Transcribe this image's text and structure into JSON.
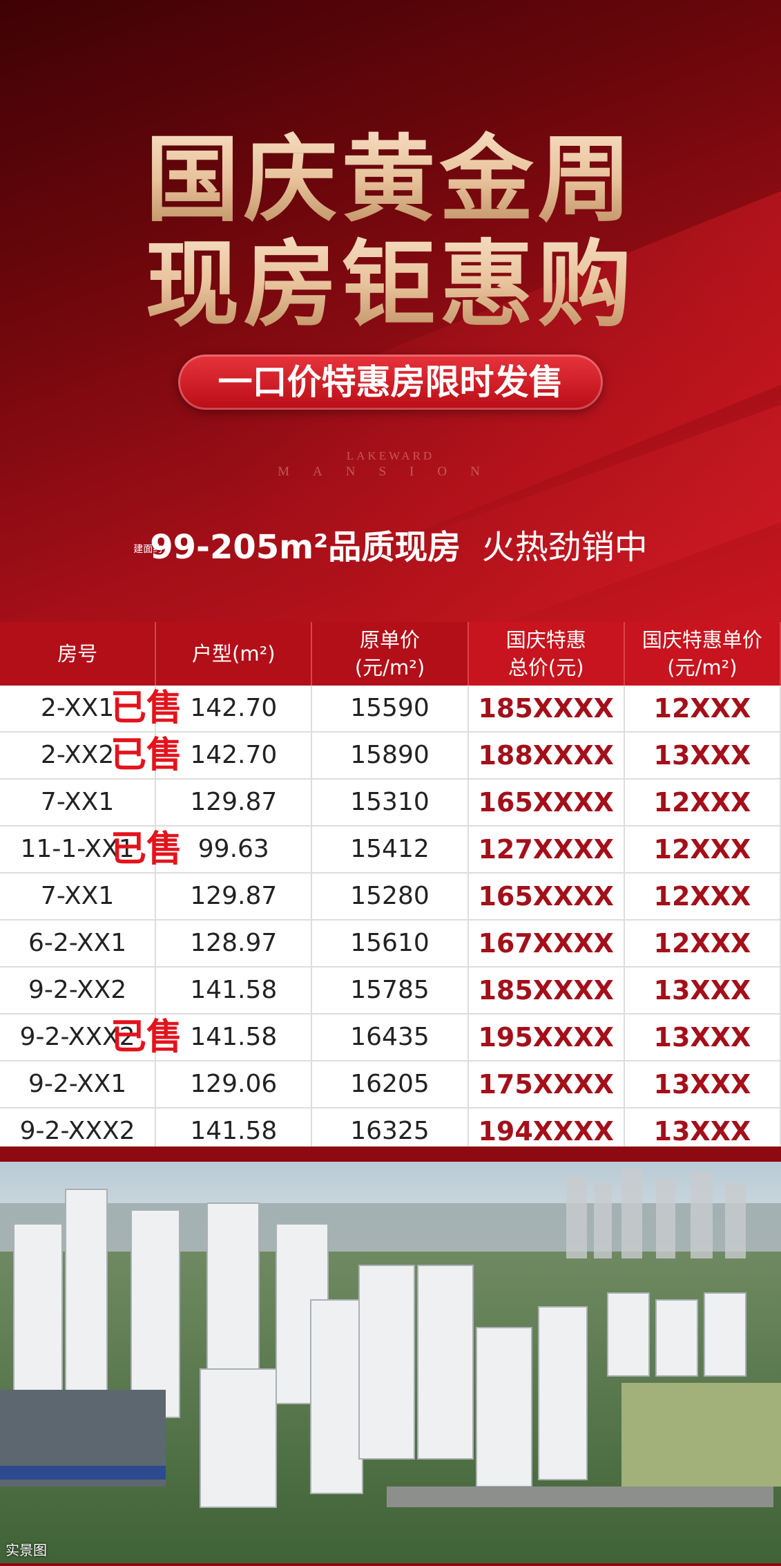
{
  "header": {
    "title_line1": "国庆黄金周",
    "title_line2": "现房钜惠购",
    "badge": "一口价特惠房限时发售",
    "brand_line1": "LAKEWARD",
    "brand_line2": "MANSION",
    "area_prefix": "建面约",
    "area_text": "99-205m²品质现房",
    "slogan": "火热劲销中"
  },
  "table": {
    "columns": [
      "房号",
      "户型(m²)",
      "原单价\n(元/m²)",
      "国庆特惠\n总价(元)",
      "国庆特惠单价\n(元/m²)"
    ],
    "rows": [
      {
        "cells": [
          "2-XX1",
          "142.70",
          "15590",
          "185XXXX",
          "12XXX"
        ],
        "stamp": "已售"
      },
      {
        "cells": [
          "2-XX2",
          "142.70",
          "15890",
          "188XXXX",
          "13XXX"
        ],
        "stamp": "已售"
      },
      {
        "cells": [
          "7-XX1",
          "129.87",
          "15310",
          "165XXXX",
          "12XXX"
        ]
      },
      {
        "cells": [
          "11-1-XX1",
          "99.63",
          "15412",
          "127XXXX",
          "12XXX"
        ],
        "stamp": "已售"
      },
      {
        "cells": [
          "7-XX1",
          "129.87",
          "15280",
          "165XXXX",
          "12XXX"
        ]
      },
      {
        "cells": [
          "6-2-XX1",
          "128.97",
          "15610",
          "167XXXX",
          "12XXX"
        ]
      },
      {
        "cells": [
          "9-2-XX2",
          "141.58",
          "15785",
          "185XXXX",
          "13XXX"
        ]
      },
      {
        "cells": [
          "9-2-XXX2",
          "141.58",
          "16435",
          "195XXXX",
          "13XXX"
        ],
        "stamp": "已售"
      },
      {
        "cells": [
          "9-2-XX1",
          "129.06",
          "16205",
          "175XXXX",
          "13XXX"
        ]
      },
      {
        "cells": [
          "9-2-XXX2",
          "141.58",
          "16325",
          "194XXXX",
          "13XXX"
        ]
      }
    ]
  },
  "photo": {
    "caption": "实景图"
  }
}
